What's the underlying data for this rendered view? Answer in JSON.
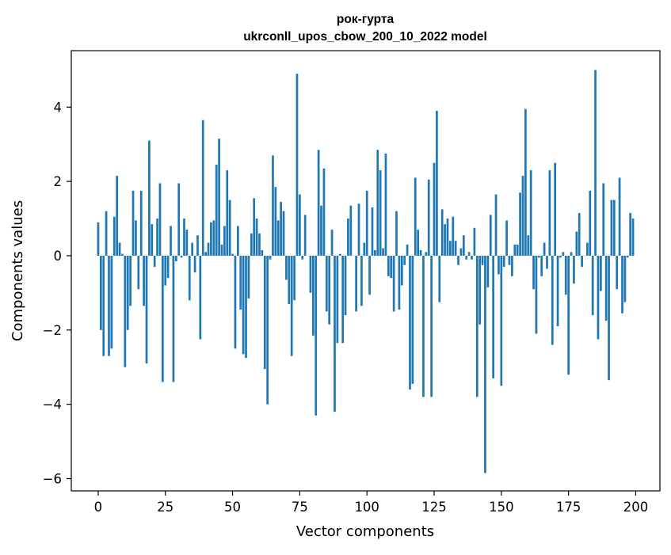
{
  "chart_data": {
    "type": "bar",
    "title_line1": "рок-гурта",
    "title_line2": "ukrconll_upos_cbow_200_10_2022 model",
    "xlabel": "Vector components",
    "ylabel": "Components values",
    "xlim": [
      -10,
      209
    ],
    "ylim": [
      -6.33,
      5.52
    ],
    "grid": false,
    "bar_color": "#1f77b4",
    "x_ticks": [
      0,
      25,
      50,
      75,
      100,
      125,
      150,
      175,
      200
    ],
    "x_tick_labels": [
      "0",
      "25",
      "50",
      "75",
      "100",
      "125",
      "150",
      "175",
      "200"
    ],
    "y_ticks": [
      -6,
      -4,
      -2,
      0,
      2,
      4
    ],
    "y_tick_labels": [
      "−6",
      "−4",
      "−2",
      "0",
      "2",
      "4"
    ],
    "values": [
      0.9,
      -2.0,
      -2.7,
      1.2,
      -2.7,
      -2.5,
      1.05,
      2.15,
      0.35,
      0.05,
      -3.0,
      -2.0,
      -1.35,
      1.75,
      0.95,
      -0.9,
      1.75,
      -1.35,
      -2.9,
      3.1,
      0.85,
      -0.3,
      1.0,
      1.95,
      -3.4,
      -0.8,
      -0.6,
      0.8,
      -3.4,
      -0.15,
      1.95,
      -0.05,
      1.0,
      0.7,
      -1.2,
      0.35,
      -0.45,
      0.55,
      -2.25,
      3.65,
      0.1,
      0.35,
      0.9,
      0.95,
      2.45,
      3.15,
      0.3,
      0.8,
      2.3,
      1.5,
      0.05,
      -2.5,
      0.8,
      -1.45,
      -2.65,
      -2.75,
      -1.15,
      0.6,
      1.55,
      1.0,
      0.6,
      0.15,
      -3.05,
      -4.0,
      -0.1,
      2.7,
      1.85,
      0.95,
      1.45,
      1.2,
      -0.65,
      -1.3,
      -2.7,
      -1.2,
      4.9,
      1.65,
      -0.1,
      1.1,
      0.0,
      -1.0,
      -2.15,
      -4.3,
      2.85,
      1.35,
      2.35,
      -1.5,
      -1.85,
      0.7,
      -4.2,
      -2.35,
      0.05,
      -2.35,
      -1.6,
      1.0,
      1.35,
      0.0,
      -1.5,
      1.4,
      -1.35,
      0.35,
      1.75,
      -1.05,
      1.3,
      0.15,
      2.85,
      2.3,
      0.2,
      2.75,
      -0.55,
      -0.6,
      -1.5,
      1.2,
      -1.45,
      -0.8,
      -0.25,
      0.3,
      -3.6,
      -3.45,
      2.1,
      0.7,
      0.15,
      -3.8,
      0.1,
      2.05,
      -3.8,
      2.5,
      3.9,
      -1.25,
      1.25,
      0.85,
      1.0,
      0.4,
      1.05,
      0.4,
      -0.25,
      0.2,
      0.55,
      -0.1,
      0.1,
      -0.1,
      0.75,
      -3.8,
      -1.85,
      -0.25,
      -5.85,
      -0.85,
      1.1,
      -3.3,
      1.65,
      -0.5,
      -3.5,
      -0.3,
      0.95,
      -0.25,
      -0.55,
      0.3,
      0.3,
      1.7,
      2.15,
      3.95,
      0.55,
      2.3,
      -0.9,
      -2.1,
      -0.05,
      -0.55,
      0.35,
      -0.35,
      2.3,
      -2.4,
      2.5,
      -1.9,
      -0.05,
      0.1,
      -1.05,
      -3.2,
      0.1,
      -0.75,
      0.65,
      1.15,
      -0.3,
      0.0,
      0.35,
      1.75,
      -1.6,
      5.0,
      -2.25,
      -0.95,
      1.95,
      -1.75,
      -3.35,
      1.5,
      1.5,
      -0.9,
      2.1,
      -1.55,
      -1.25,
      -0.05,
      1.15,
      1.0
    ]
  }
}
